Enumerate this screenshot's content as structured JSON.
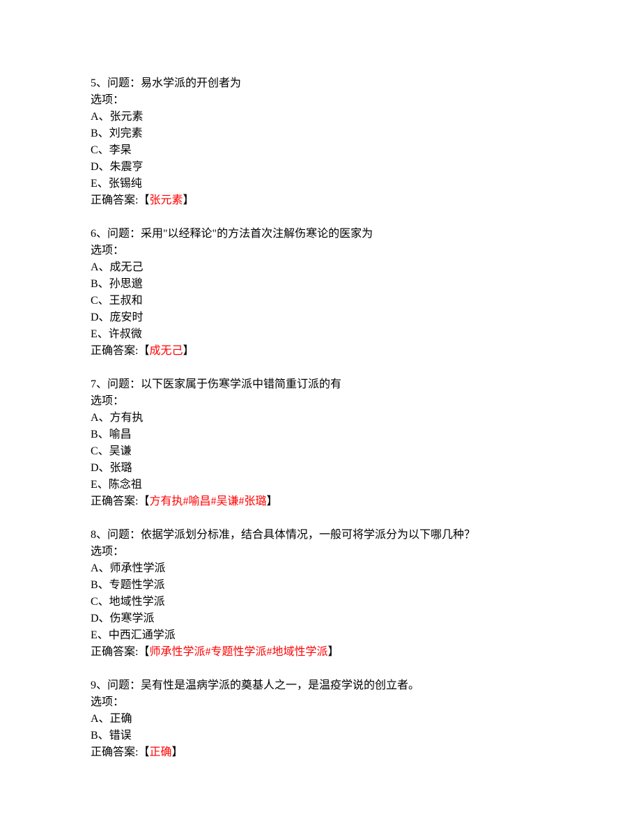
{
  "questions": [
    {
      "number": "5",
      "question": "问题：易水学派的开创者为",
      "options_label": "选项：",
      "options": [
        "A、张元素",
        "B、刘完素",
        "C、李杲",
        "D、朱震亨",
        "E、张锡纯"
      ],
      "answer_prefix": "正确答案:【",
      "answer": "张元素",
      "answer_suffix": "】"
    },
    {
      "number": "6",
      "question": "问题：采用\"以经释论\"的方法首次注解伤寒论的医家为",
      "options_label": "选项：",
      "options": [
        "A、成无己",
        "B、孙思邈",
        "C、王叔和",
        "D、庞安时",
        "E、许叔微"
      ],
      "answer_prefix": "正确答案:【",
      "answer": "成无己",
      "answer_suffix": "】"
    },
    {
      "number": "7",
      "question": "问题：以下医家属于伤寒学派中错简重订派的有",
      "options_label": "选项：",
      "options": [
        "A、方有执",
        "B、喻昌",
        "C、吴谦",
        "D、张璐",
        "E、陈念祖"
      ],
      "answer_prefix": "正确答案:【",
      "answer": "方有执#喻昌#吴谦#张璐",
      "answer_suffix": "】"
    },
    {
      "number": "8",
      "question": "问题：依据学派划分标准，结合具体情况，一般可将学派分为以下哪几种？",
      "options_label": "选项：",
      "options": [
        "A、师承性学派",
        "B、专题性学派",
        "C、地域性学派",
        "D、伤寒学派",
        "E、中西汇通学派"
      ],
      "answer_prefix": "正确答案:【",
      "answer": "师承性学派#专题性学派#地域性学派",
      "answer_suffix": "】"
    },
    {
      "number": "9",
      "question": "问题：吴有性是温病学派的奠基人之一，是温疫学说的创立者。",
      "options_label": "选项：",
      "options": [
        "A、正确",
        "B、错误"
      ],
      "answer_prefix": "正确答案:【",
      "answer": "正确",
      "answer_suffix": "】"
    }
  ]
}
